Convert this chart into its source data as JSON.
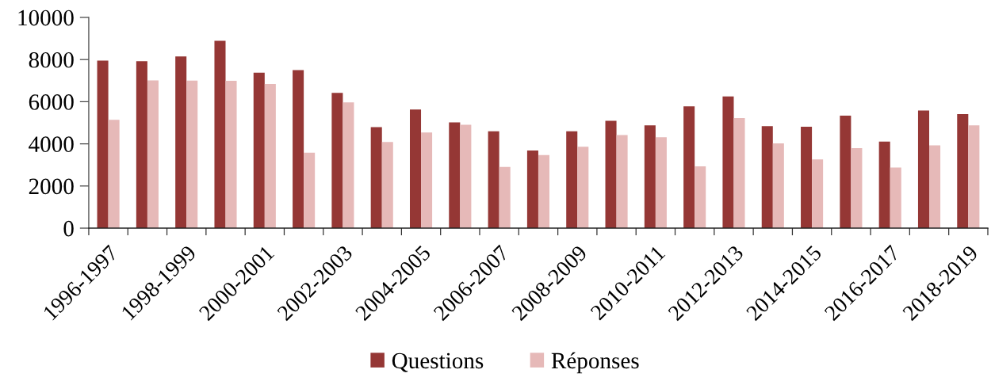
{
  "chart_data": {
    "type": "bar",
    "categories": [
      "1996-1997",
      null,
      "1998-1999",
      null,
      "2000-2001",
      null,
      "2002-2003",
      null,
      "2004-2005",
      null,
      "2006-2007",
      null,
      "2008-2009",
      null,
      "2010-2011",
      null,
      "2012-2013",
      null,
      "2014-2015",
      null,
      "2016-2017",
      null,
      "2018-2019"
    ],
    "series": [
      {
        "name": "Questions",
        "color": "#953735",
        "values": [
          7950,
          7920,
          8150,
          8890,
          7380,
          7500,
          6420,
          4790,
          5630,
          5020,
          4600,
          3680,
          4600,
          5090,
          4880,
          5780,
          6250,
          4840,
          4810,
          5340,
          4110,
          5580,
          5410
        ]
      },
      {
        "name": "Réponses",
        "color": "#e6b9b8",
        "values": [
          5140,
          7010,
          7000,
          6990,
          6840,
          3580,
          5970,
          4090,
          4540,
          4910,
          2900,
          3470,
          3860,
          4420,
          4310,
          2930,
          5230,
          4020,
          3260,
          3800,
          2880,
          3930,
          4880
        ]
      }
    ],
    "ylim": [
      0,
      10000
    ],
    "yticks": [
      0,
      2000,
      4000,
      6000,
      8000,
      10000
    ],
    "legend": "bottom"
  }
}
